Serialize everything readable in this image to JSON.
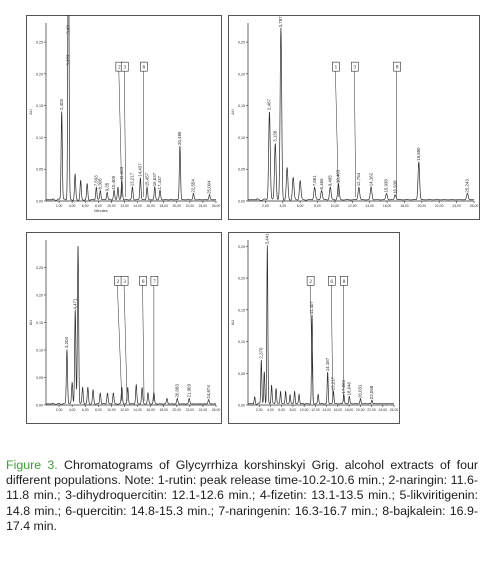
{
  "caption": {
    "figure_label": "Figure 3.",
    "text": "Chromatograms of Glycyrrhiza korshinskyi Grig. alcohol extracts of four different populations. Note: 1-rutin: peak release time-10.2-10.6 min.; 2-naringin: 11.6-11.8 min.; 3-dihydroquercitin: 12.1-12.6 min.; 4-fizetin: 13.1-13.5 min.; 5-likviritigenin: 14.8 min.; 6-quercitin: 14.8-15.3 min.; 7-naringenin: 16.3-16.7 min.; 8-bajkalein: 16.9-17.4 min."
  },
  "colors": {
    "trace": "#2b2b2b",
    "caption_label": "#3f9b3a"
  },
  "chart_data": [
    {
      "type": "line",
      "panel": "top-left",
      "ylabel": "AU",
      "xlabel": "Minutes",
      "xlim": [
        0,
        26
      ],
      "ylim": [
        0,
        0.28
      ],
      "x_ticks": [
        "2,00",
        "4,00",
        "6,00",
        "8,00",
        "10,00",
        "12,00",
        "14,00",
        "16,00",
        "18,00",
        "20,00",
        "22,00",
        "24,00",
        "26,00"
      ],
      "y_ticks": [
        "0,00",
        "0,05",
        "0,10",
        "0,15",
        "0,20",
        "0,25"
      ],
      "peaks": [
        {
          "t": 2.403,
          "label": "2,403",
          "h": 0.14
        },
        {
          "t": 3.43,
          "label": "3,43",
          "h": 0.26
        },
        {
          "t": 3.429,
          "label": "3,429",
          "h": 0.21
        },
        {
          "t": 4.45,
          "label": "",
          "h": 0.04
        },
        {
          "t": 5.3,
          "label": "",
          "h": 0.03
        },
        {
          "t": 6.3,
          "label": "",
          "h": 0.025
        },
        {
          "t": 7.693,
          "label": "7,693",
          "h": 0.02
        },
        {
          "t": 8.308,
          "label": "8,308",
          "h": 0.015
        },
        {
          "t": 9.35,
          "label": "9,35",
          "h": 0.012
        },
        {
          "t": 10.409,
          "label": "10,409",
          "h": 0.015
        },
        {
          "t": 11.0,
          "label": "",
          "h": 0.02
        },
        {
          "t": 11.603,
          "label": "11,603",
          "h": 0.03
        },
        {
          "t": 13.217,
          "label": "13,217",
          "h": 0.02
        },
        {
          "t": 14.437,
          "label": "14,437",
          "h": 0.035
        },
        {
          "t": 15.457,
          "label": "15,457",
          "h": 0.02
        },
        {
          "t": 16.637,
          "label": "16,637",
          "h": 0.02
        },
        {
          "t": 17.437,
          "label": "17,437",
          "h": 0.015
        },
        {
          "t": 20.485,
          "label": "20,485",
          "h": 0.085
        },
        {
          "t": 22.554,
          "label": "22,554",
          "h": 0.01
        },
        {
          "t": 25.004,
          "label": "25,004",
          "h": 0.008
        }
      ],
      "markers": [
        {
          "label": "2",
          "t": 11.6
        },
        {
          "label": "3",
          "t": 12.2
        },
        {
          "label": "6",
          "t": 14.9
        }
      ]
    },
    {
      "type": "line",
      "panel": "top-right",
      "ylabel": "AU",
      "xlabel": "",
      "xlim": [
        0,
        26
      ],
      "ylim": [
        0,
        0.28
      ],
      "x_ticks": [
        "2,00",
        "4,00",
        "6,00",
        "8,00",
        "10,00",
        "12,00",
        "14,00",
        "16,00",
        "18,00",
        "20,00",
        "22,00",
        "24,00",
        "26,00"
      ],
      "y_ticks": [
        "0,00",
        "0,05",
        "0,10",
        "0,15",
        "0,20",
        "0,25"
      ],
      "peaks": [
        {
          "t": 2.467,
          "label": "2,467",
          "h": 0.14
        },
        {
          "t": 3.138,
          "label": "3,138",
          "h": 0.09
        },
        {
          "t": 3.787,
          "label": "3,787",
          "h": 0.27
        },
        {
          "t": 4.5,
          "label": "",
          "h": 0.05
        },
        {
          "t": 5.2,
          "label": "",
          "h": 0.035
        },
        {
          "t": 6.0,
          "label": "",
          "h": 0.03
        },
        {
          "t": 7.661,
          "label": "7,661",
          "h": 0.02
        },
        {
          "t": 8.466,
          "label": "8,466",
          "h": 0.015
        },
        {
          "t": 9.465,
          "label": "9,465",
          "h": 0.02
        },
        {
          "t": 10.403,
          "label": "10,403",
          "h": 0.025
        },
        {
          "t": 12.754,
          "label": "12,754",
          "h": 0.02
        },
        {
          "t": 14.162,
          "label": "14,162",
          "h": 0.02
        },
        {
          "t": 15.938,
          "label": "15,938",
          "h": 0.01
        },
        {
          "t": 16.938,
          "label": "16,938",
          "h": 0.008
        },
        {
          "t": 19.65,
          "label": "19,650",
          "h": 0.06
        },
        {
          "t": 25.243,
          "label": "25,243",
          "h": 0.01
        }
      ],
      "markers": [
        {
          "label": "1",
          "t": 10.4
        },
        {
          "label": "3",
          "t": 12.4
        },
        {
          "label": "8",
          "t": 17.1
        }
      ]
    },
    {
      "type": "line",
      "panel": "bottom-left",
      "ylabel": "AU",
      "xlabel": "",
      "xlim": [
        0,
        26
      ],
      "ylim": [
        0,
        0.3
      ],
      "x_ticks": [
        "2,00",
        "4,00",
        "6,00",
        "8,00",
        "10,00",
        "12,00",
        "14,00",
        "16,00",
        "18,00",
        "20,00",
        "22,00",
        "24,00",
        "26,00"
      ],
      "y_ticks": [
        "0,00",
        "0,05",
        "0,10",
        "0,15",
        "0,20",
        "0,25"
      ],
      "peaks": [
        {
          "t": 3.204,
          "label": "3,204",
          "h": 0.1
        },
        {
          "t": 4.0,
          "label": "",
          "h": 0.04
        },
        {
          "t": 4.471,
          "label": "4,471",
          "h": 0.17
        },
        {
          "t": 4.9,
          "label": "",
          "h": 0.29
        },
        {
          "t": 5.6,
          "label": "",
          "h": 0.03
        },
        {
          "t": 6.4,
          "label": "",
          "h": 0.03
        },
        {
          "t": 7.2,
          "label": "",
          "h": 0.025
        },
        {
          "t": 8.3,
          "label": "",
          "h": 0.02
        },
        {
          "t": 9.4,
          "label": "",
          "h": 0.02
        },
        {
          "t": 10.3,
          "label": "",
          "h": 0.02
        },
        {
          "t": 11.6,
          "label": "",
          "h": 0.03
        },
        {
          "t": 12.5,
          "label": "",
          "h": 0.03
        },
        {
          "t": 13.8,
          "label": "",
          "h": 0.035
        },
        {
          "t": 14.7,
          "label": "",
          "h": 0.03
        },
        {
          "t": 15.6,
          "label": "",
          "h": 0.02
        },
        {
          "t": 16.5,
          "label": "",
          "h": 0.02
        },
        {
          "t": 18.5,
          "label": "",
          "h": 0.01
        },
        {
          "t": 20.083,
          "label": "20,083",
          "h": 0.01
        },
        {
          "t": 21.909,
          "label": "21,909",
          "h": 0.01
        },
        {
          "t": 24.874,
          "label": "24,874",
          "h": 0.008
        }
      ],
      "markers": [
        {
          "label": "2",
          "t": 11.6
        },
        {
          "label": "3",
          "t": 12.4
        },
        {
          "label": "6",
          "t": 15.0
        },
        {
          "label": "7",
          "t": 16.5
        }
      ]
    },
    {
      "type": "line",
      "panel": "bottom-right",
      "ylabel": "AU",
      "xlabel": "",
      "xlim": [
        0,
        26
      ],
      "ylim": [
        0,
        0.26
      ],
      "x_ticks": [
        "2,00",
        "4,00",
        "6,00",
        "8,00",
        "10,00",
        "12,00",
        "14,00",
        "16,00",
        "18,00",
        "20,00",
        "22,00",
        "24,00",
        "26,00"
      ],
      "y_ticks": [
        "0,00",
        "0,05",
        "0,10",
        "0,15",
        "0,20",
        "0,25"
      ],
      "peaks": [
        {
          "t": 1.2,
          "label": "",
          "h": 0.01
        },
        {
          "t": 2.37,
          "label": "2,370",
          "h": 0.07
        },
        {
          "t": 2.9,
          "label": "",
          "h": 0.05
        },
        {
          "t": 3.441,
          "label": "3,441",
          "h": 0.25
        },
        {
          "t": 4.2,
          "label": "",
          "h": 0.03
        },
        {
          "t": 5.0,
          "label": "",
          "h": 0.025
        },
        {
          "t": 5.8,
          "label": "",
          "h": 0.02
        },
        {
          "t": 6.7,
          "label": "",
          "h": 0.02
        },
        {
          "t": 7.5,
          "label": "",
          "h": 0.015
        },
        {
          "t": 8.3,
          "label": "",
          "h": 0.02
        },
        {
          "t": 9.1,
          "label": "",
          "h": 0.015
        },
        {
          "t": 11.407,
          "label": "11,407",
          "h": 0.14
        },
        {
          "t": 12.5,
          "label": "",
          "h": 0.015
        },
        {
          "t": 14.187,
          "label": "14,187",
          "h": 0.05
        },
        {
          "t": 15.217,
          "label": "15,217",
          "h": 0.02
        },
        {
          "t": 17.063,
          "label": "17,063",
          "h": 0.015
        },
        {
          "t": 18.04,
          "label": "18,040",
          "h": 0.012
        },
        {
          "t": 20.031,
          "label": "20,031",
          "h": 0.008
        },
        {
          "t": 22.068,
          "label": "22,068",
          "h": 0.006
        }
      ],
      "markers": [
        {
          "label": "2",
          "t": 11.6
        },
        {
          "label": "6",
          "t": 15.1
        },
        {
          "label": "8",
          "t": 17.0
        }
      ]
    }
  ]
}
